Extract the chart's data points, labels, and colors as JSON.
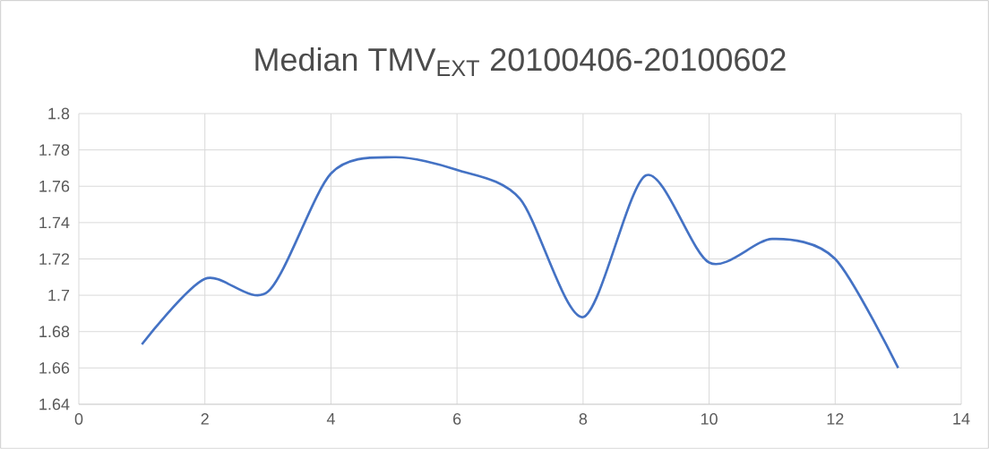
{
  "chart_data": {
    "type": "line",
    "title": "Median TMV$_{EXT}$ 20100406-20100602",
    "x": [
      1,
      2,
      3,
      4,
      5,
      6,
      7,
      8,
      9,
      10,
      11,
      12,
      13
    ],
    "series": [
      {
        "color": "#4472c4",
        "values": [
          1.673,
          1.709,
          1.702,
          1.767,
          1.776,
          1.769,
          1.753,
          1.688,
          1.766,
          1.718,
          1.731,
          1.72,
          1.66
        ]
      }
    ],
    "xlim": [
      0,
      14
    ],
    "xticks": [
      0,
      2,
      4,
      6,
      8,
      10,
      12,
      14
    ],
    "ylim": [
      1.64,
      1.8
    ],
    "yticks": [
      1.64,
      1.66,
      1.68,
      1.7,
      1.72,
      1.74,
      1.76,
      1.78,
      1.8
    ],
    "grid": true,
    "marker": "none"
  }
}
